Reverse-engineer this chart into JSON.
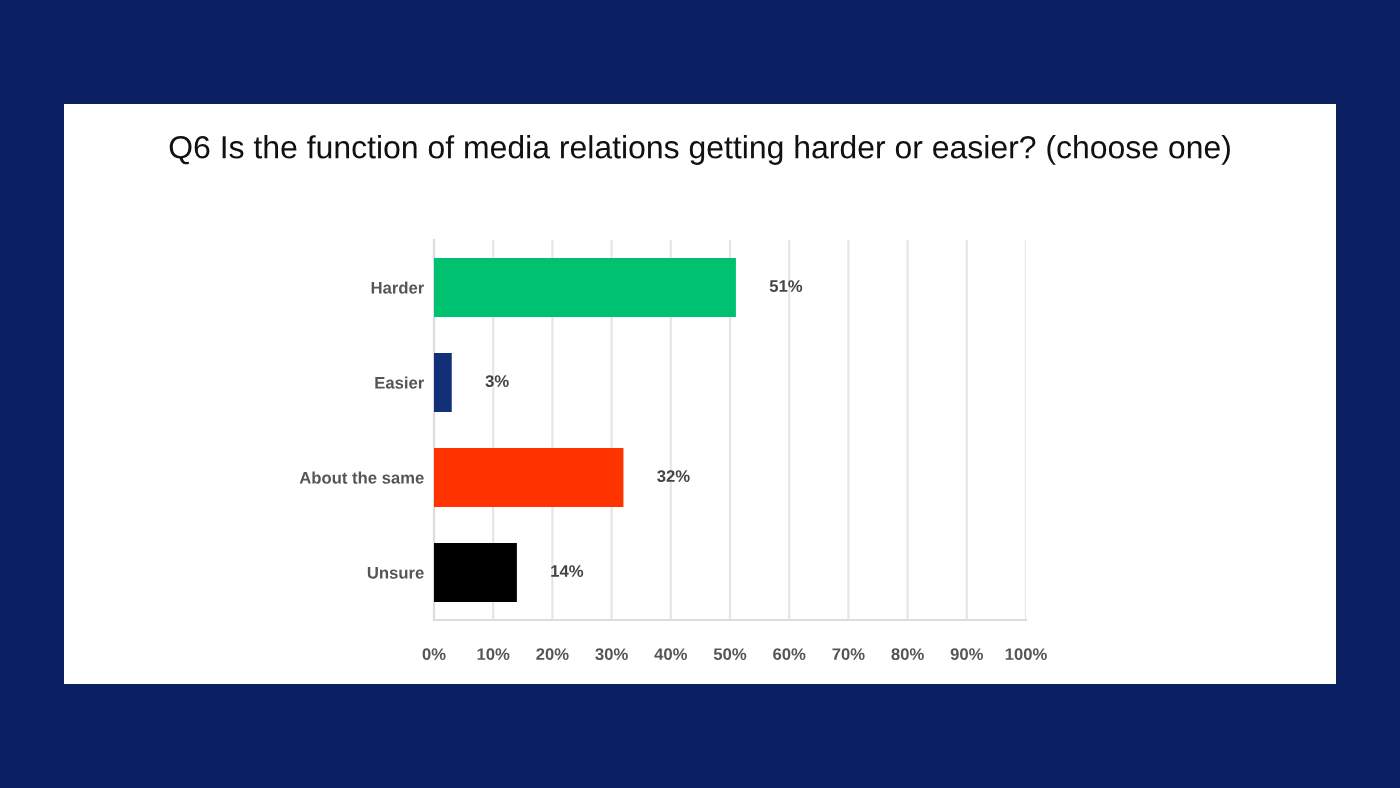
{
  "chart_data": {
    "type": "bar",
    "orientation": "horizontal",
    "title": "Q6 Is the function of media relations getting harder or easier? (choose one)",
    "categories": [
      "Harder",
      "Easier",
      "About the same",
      "Unsure"
    ],
    "values": [
      51,
      3,
      32,
      14
    ],
    "colors": [
      "#00c170",
      "#12307a",
      "#ff3300",
      "#000000"
    ],
    "value_labels": [
      "51%",
      "3%",
      "32%",
      "14%"
    ],
    "xlim": [
      0,
      100
    ],
    "xticks": [
      {
        "value": 0,
        "label": "0%"
      },
      {
        "value": 10,
        "label": "10%"
      },
      {
        "value": 20,
        "label": "20%"
      },
      {
        "value": 30,
        "label": "30%"
      },
      {
        "value": 40,
        "label": "40%"
      },
      {
        "value": 50,
        "label": "50%"
      },
      {
        "value": 60,
        "label": "60%"
      },
      {
        "value": 70,
        "label": "70%"
      },
      {
        "value": 80,
        "label": "80%"
      },
      {
        "value": 90,
        "label": "90%"
      },
      {
        "value": 100,
        "label": "100%"
      }
    ],
    "grid": "x",
    "legend": false
  }
}
